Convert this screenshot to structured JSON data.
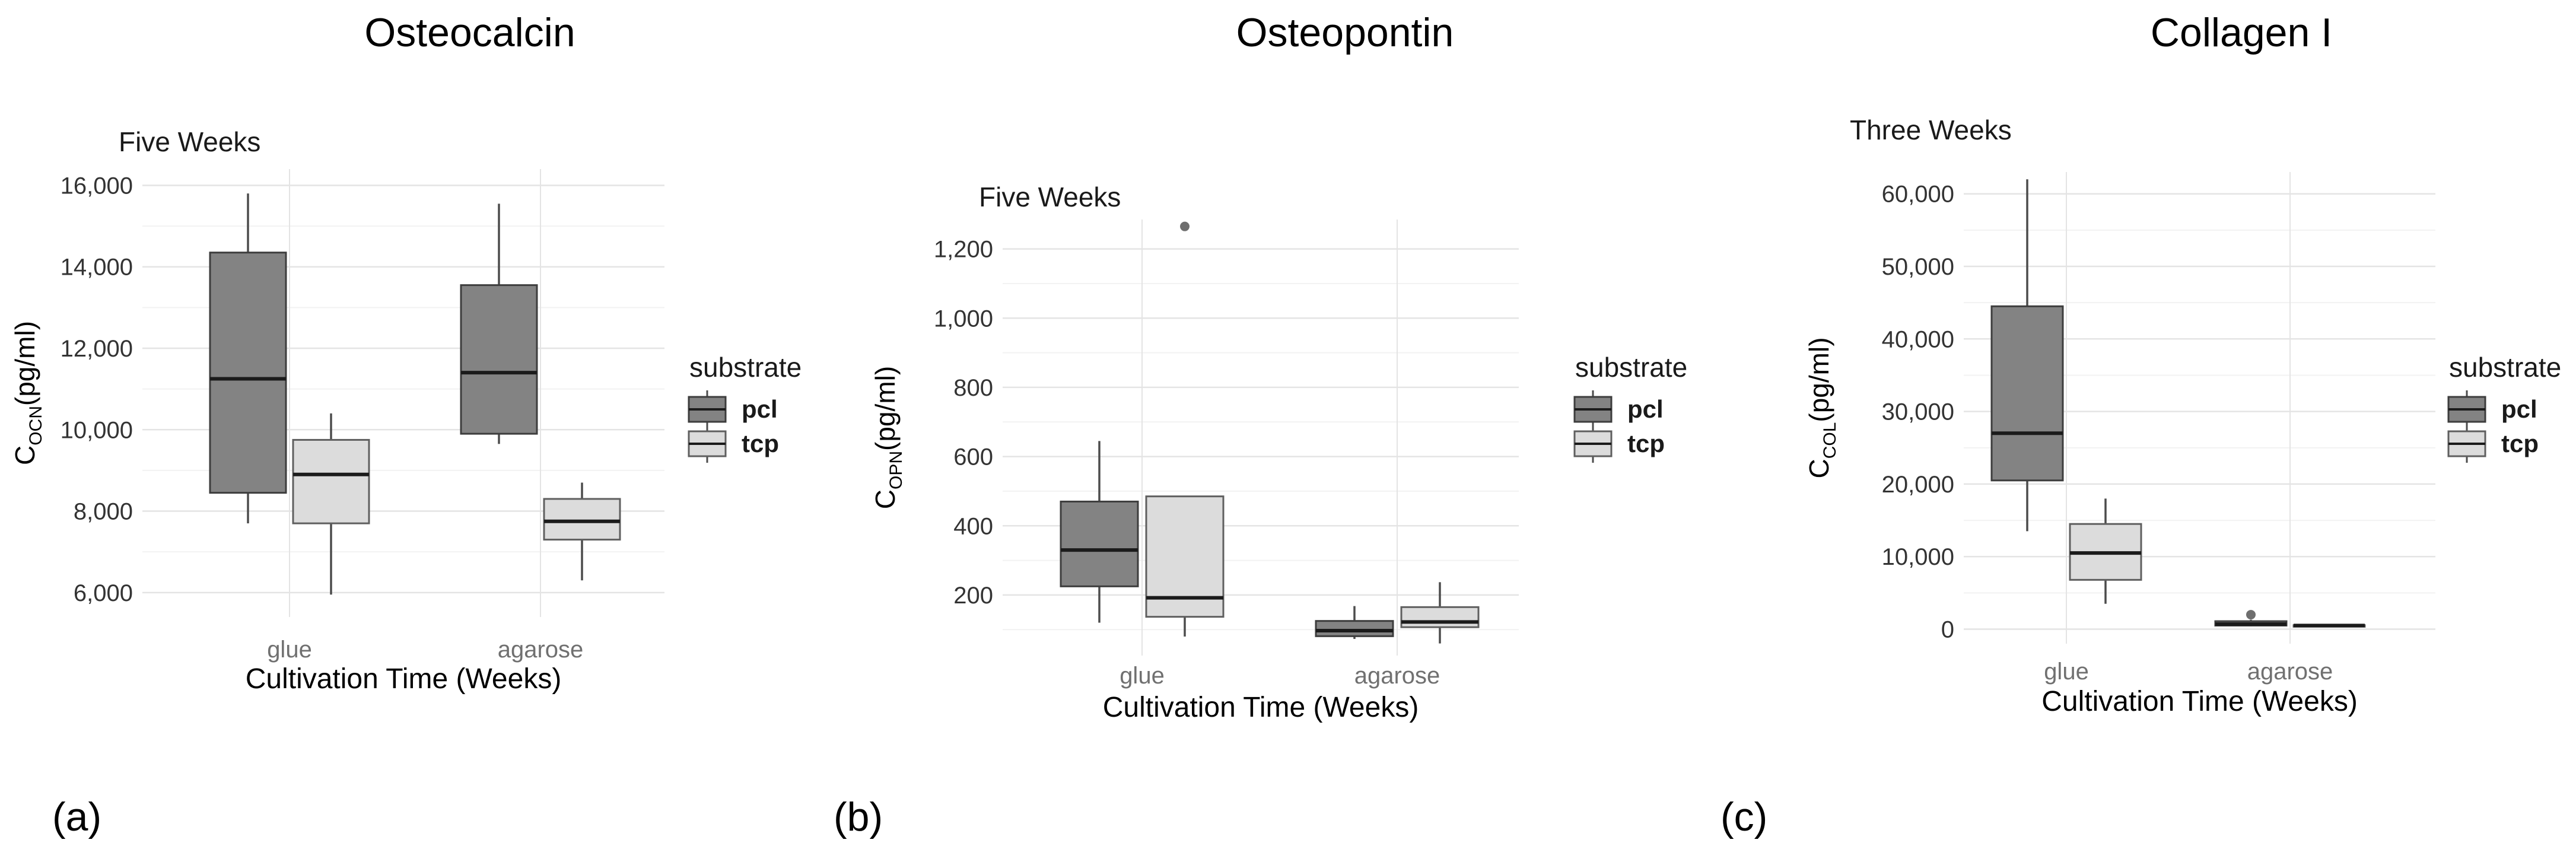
{
  "colors": {
    "background": "#ffffff",
    "pcl_fill": "#838383",
    "pcl_stroke": "#3d3d3d",
    "tcp_fill": "#dcdcdc",
    "tcp_stroke": "#5f5f5f",
    "median": "#1b1b1b",
    "whisker": "#4c4c4c",
    "grid_major": "#e4e4e4",
    "grid_minor": "#f2f2f2",
    "outlier": "#6e6e6e",
    "tick_text": "#333333",
    "category_text": "#707070",
    "text": "#000000"
  },
  "chart_data": [
    {
      "type": "box",
      "panel_id": "a",
      "panel_letter": "(a)",
      "title": "Osteocalcin",
      "subtitle": "Five Weeks",
      "xlabel": "Cultivation Time (Weeks)",
      "ylabel": {
        "main": "C",
        "sub": "OCN",
        "unit": "(pg/ml)"
      },
      "categories": [
        "glue",
        "agarose"
      ],
      "yticks": [
        6000,
        8000,
        10000,
        12000,
        14000,
        16000
      ],
      "ytick_labels": [
        "6,000",
        "8,000",
        "10,000",
        "12,000",
        "14,000",
        "16,000"
      ],
      "ylim": [
        5400,
        16400
      ],
      "grid": true,
      "legend_position": "right",
      "legend": {
        "title": "substrate",
        "entries": [
          "pcl",
          "tcp"
        ]
      },
      "series": [
        {
          "name": "pcl",
          "boxes": [
            {
              "category": "glue",
              "whisker_low": 7700,
              "q1": 8450,
              "median": 11250,
              "q3": 14350,
              "whisker_high": 15800,
              "outliers": []
            },
            {
              "category": "agarose",
              "whisker_low": 9650,
              "q1": 9900,
              "median": 11400,
              "q3": 13550,
              "whisker_high": 15550,
              "outliers": []
            }
          ]
        },
        {
          "name": "tcp",
          "boxes": [
            {
              "category": "glue",
              "whisker_low": 5950,
              "q1": 7700,
              "median": 8900,
              "q3": 9750,
              "whisker_high": 10400,
              "outliers": []
            },
            {
              "category": "agarose",
              "whisker_low": 6300,
              "q1": 7300,
              "median": 7750,
              "q3": 8300,
              "whisker_high": 8700,
              "outliers": []
            }
          ]
        }
      ]
    },
    {
      "type": "box",
      "panel_id": "b",
      "panel_letter": "(b)",
      "title": "Osteopontin",
      "subtitle": "Five Weeks",
      "xlabel": "Cultivation Time (Weeks)",
      "ylabel": {
        "main": "C",
        "sub": "OPN",
        "unit": "(pg/ml)"
      },
      "categories": [
        "glue",
        "agarose"
      ],
      "yticks": [
        200,
        400,
        600,
        800,
        1000,
        1200
      ],
      "ytick_labels": [
        "200",
        "400",
        "600",
        "800",
        "1,000",
        "1,200"
      ],
      "ylim": [
        25,
        1285
      ],
      "grid": true,
      "legend_position": "right",
      "legend": {
        "title": "substrate",
        "entries": [
          "pcl",
          "tcp"
        ]
      },
      "series": [
        {
          "name": "pcl",
          "boxes": [
            {
              "category": "glue",
              "whisker_low": 120,
              "q1": 225,
              "median": 330,
              "q3": 470,
              "whisker_high": 645,
              "outliers": []
            },
            {
              "category": "agarose",
              "whisker_low": 73,
              "q1": 81,
              "median": 97,
              "q3": 125,
              "whisker_high": 168,
              "outliers": []
            }
          ]
        },
        {
          "name": "tcp",
          "boxes": [
            {
              "category": "glue",
              "whisker_low": 80,
              "q1": 137,
              "median": 192,
              "q3": 485,
              "whisker_high": 485,
              "outliers": [
                1265
              ]
            },
            {
              "category": "agarose",
              "whisker_low": 60,
              "q1": 107,
              "median": 122,
              "q3": 165,
              "whisker_high": 237,
              "outliers": []
            }
          ]
        }
      ]
    },
    {
      "type": "box",
      "panel_id": "c",
      "panel_letter": "(c)",
      "title": "Collagen I",
      "subtitle": "Three Weeks",
      "xlabel": "Cultivation Time (Weeks)",
      "ylabel": {
        "main": "C",
        "sub": "COL",
        "unit": "(pg/ml)"
      },
      "categories": [
        "glue",
        "agarose"
      ],
      "yticks": [
        0,
        10000,
        20000,
        30000,
        40000,
        50000,
        60000
      ],
      "ytick_labels": [
        "0",
        "10,000",
        "20,000",
        "30,000",
        "40,000",
        "50,000",
        "60,000"
      ],
      "ylim": [
        -2000,
        63000
      ],
      "grid": true,
      "legend_position": "right",
      "legend": {
        "title": "substrate",
        "entries": [
          "pcl",
          "tcp"
        ]
      },
      "series": [
        {
          "name": "pcl",
          "boxes": [
            {
              "category": "glue",
              "whisker_low": 13500,
              "q1": 20500,
              "median": 27000,
              "q3": 44500,
              "whisker_high": 62000,
              "outliers": []
            },
            {
              "category": "agarose",
              "whisker_low": 400,
              "q1": 500,
              "median": 700,
              "q3": 1100,
              "whisker_high": 1300,
              "outliers": [
                2000
              ]
            }
          ]
        },
        {
          "name": "tcp",
          "boxes": [
            {
              "category": "glue",
              "whisker_low": 3500,
              "q1": 6800,
              "median": 10500,
              "q3": 14500,
              "whisker_high": 18000,
              "outliers": []
            },
            {
              "category": "agarose",
              "whisker_low": 400,
              "q1": 450,
              "median": 500,
              "q3": 550,
              "whisker_high": 600,
              "outliers": []
            }
          ]
        }
      ]
    }
  ]
}
